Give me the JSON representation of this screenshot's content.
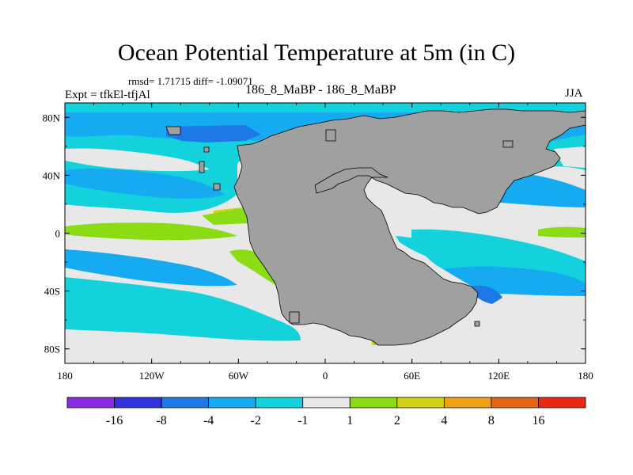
{
  "title": "Ocean Potential Temperature at 5m (in C)",
  "stats": "rmsd= 1.71715 diff= -1.09071",
  "expt_label": "Expt = tfkEl-tfjAl",
  "diff_label": "186_8_MaBP - 186_8_MaBP",
  "season": "JJA",
  "map": {
    "projection": "cylindrical-equidistant",
    "lon_range": [
      -180,
      180
    ],
    "lat_range": [
      -90,
      90
    ],
    "x_ticks": [
      {
        "lon": -180,
        "label": "180"
      },
      {
        "lon": -120,
        "label": "120W"
      },
      {
        "lon": -60,
        "label": "60W"
      },
      {
        "lon": 0,
        "label": "0"
      },
      {
        "lon": 60,
        "label": "60E"
      },
      {
        "lon": 120,
        "label": "120E"
      },
      {
        "lon": 180,
        "label": "180"
      }
    ],
    "y_ticks": [
      {
        "lat": 80,
        "label": "80N"
      },
      {
        "lat": 40,
        "label": "40N"
      },
      {
        "lat": 0,
        "label": "0"
      },
      {
        "lat": -40,
        "label": "40S"
      },
      {
        "lat": -80,
        "label": "80S"
      }
    ],
    "land_color": "#a0a0a0",
    "background_class_color": "#e8e8e8"
  },
  "colorbar": {
    "colors": [
      "#8a2be2",
      "#3232dc",
      "#1e78e6",
      "#16aaf0",
      "#14d2dc",
      "#e8e8e8",
      "#8cdc14",
      "#d2d214",
      "#f0a014",
      "#e66414",
      "#e62814"
    ],
    "labels": [
      "-16",
      "-8",
      "-4",
      "-2",
      "-1",
      "1",
      "2",
      "4",
      "8",
      "16"
    ]
  }
}
